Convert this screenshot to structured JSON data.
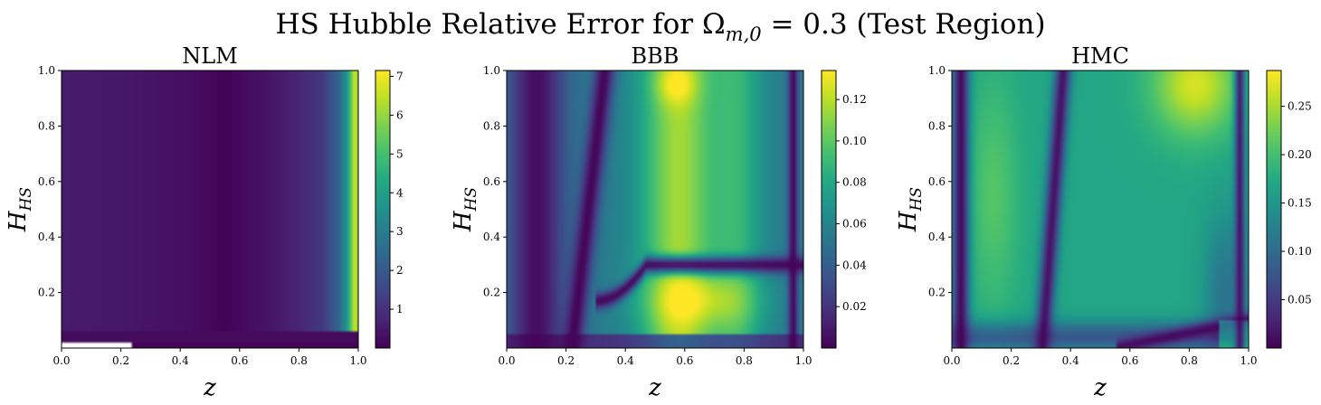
{
  "figure": {
    "title_main": "HS Hubble Relative Error for Ω",
    "title_sub": "m,0",
    "title_tail": " = 0.3 (Test Region)"
  },
  "chart_data": [
    {
      "type": "heatmap",
      "title": "NLM",
      "xlabel": "z",
      "ylabel_main": "H",
      "ylabel_sub": "HS",
      "xlim": [
        0.0,
        1.0
      ],
      "ylim": [
        0.0,
        1.0
      ],
      "xticks": [
        "0.0",
        "0.2",
        "0.4",
        "0.6",
        "0.8",
        "1.0"
      ],
      "yticks": [
        "0.2",
        "0.4",
        "0.6",
        "0.8",
        "1.0"
      ],
      "colormap": "viridis",
      "colorbar_range": [
        0.0,
        7.15
      ],
      "colorbar_ticks": [
        "1",
        "2",
        "3",
        "4",
        "5",
        "6",
        "7"
      ],
      "colorbar_values": [
        1,
        2,
        3,
        4,
        5,
        6,
        7
      ],
      "z_profile": [
        [
          0.0,
          0.55
        ],
        [
          0.2,
          0.45
        ],
        [
          0.4,
          0.3
        ],
        [
          0.5,
          0.15
        ],
        [
          0.55,
          0.05
        ],
        [
          0.6,
          0.15
        ],
        [
          0.7,
          0.4
        ],
        [
          0.8,
          0.75
        ],
        [
          0.88,
          1.2
        ],
        [
          0.93,
          2.2
        ],
        [
          0.96,
          3.6
        ],
        [
          0.98,
          5.8
        ],
        [
          0.99,
          7.0
        ],
        [
          1.0,
          5.5
        ]
      ]
    },
    {
      "type": "heatmap",
      "title": "BBB",
      "xlabel": "z",
      "ylabel_main": "H",
      "ylabel_sub": "HS",
      "xlim": [
        0.0,
        1.0
      ],
      "ylim": [
        0.0,
        1.0
      ],
      "xticks": [
        "0.0",
        "0.2",
        "0.4",
        "0.6",
        "0.8",
        "1.0"
      ],
      "yticks": [
        "0.2",
        "0.4",
        "0.6",
        "0.8",
        "1.0"
      ],
      "colormap": "viridis",
      "colorbar_range": [
        0.0,
        0.134
      ],
      "colorbar_ticks": [
        "0.02",
        "0.04",
        "0.06",
        "0.08",
        "0.10",
        "0.12"
      ],
      "colorbar_values": [
        0.02,
        0.04,
        0.06,
        0.08,
        0.1,
        0.12
      ]
    },
    {
      "type": "heatmap",
      "title": "HMC",
      "xlabel": "z",
      "ylabel_main": "H",
      "ylabel_sub": "HS",
      "xlim": [
        0.0,
        1.0
      ],
      "ylim": [
        0.0,
        1.0
      ],
      "xticks": [
        "0.0",
        "0.2",
        "0.4",
        "0.6",
        "0.8",
        "1.0"
      ],
      "yticks": [
        "0.2",
        "0.4",
        "0.6",
        "0.8",
        "1.0"
      ],
      "colormap": "viridis",
      "colorbar_range": [
        0.0,
        0.287
      ],
      "colorbar_ticks": [
        "0.05",
        "0.10",
        "0.15",
        "0.20",
        "0.25"
      ],
      "colorbar_values": [
        0.05,
        0.1,
        0.15,
        0.2,
        0.25
      ]
    }
  ]
}
